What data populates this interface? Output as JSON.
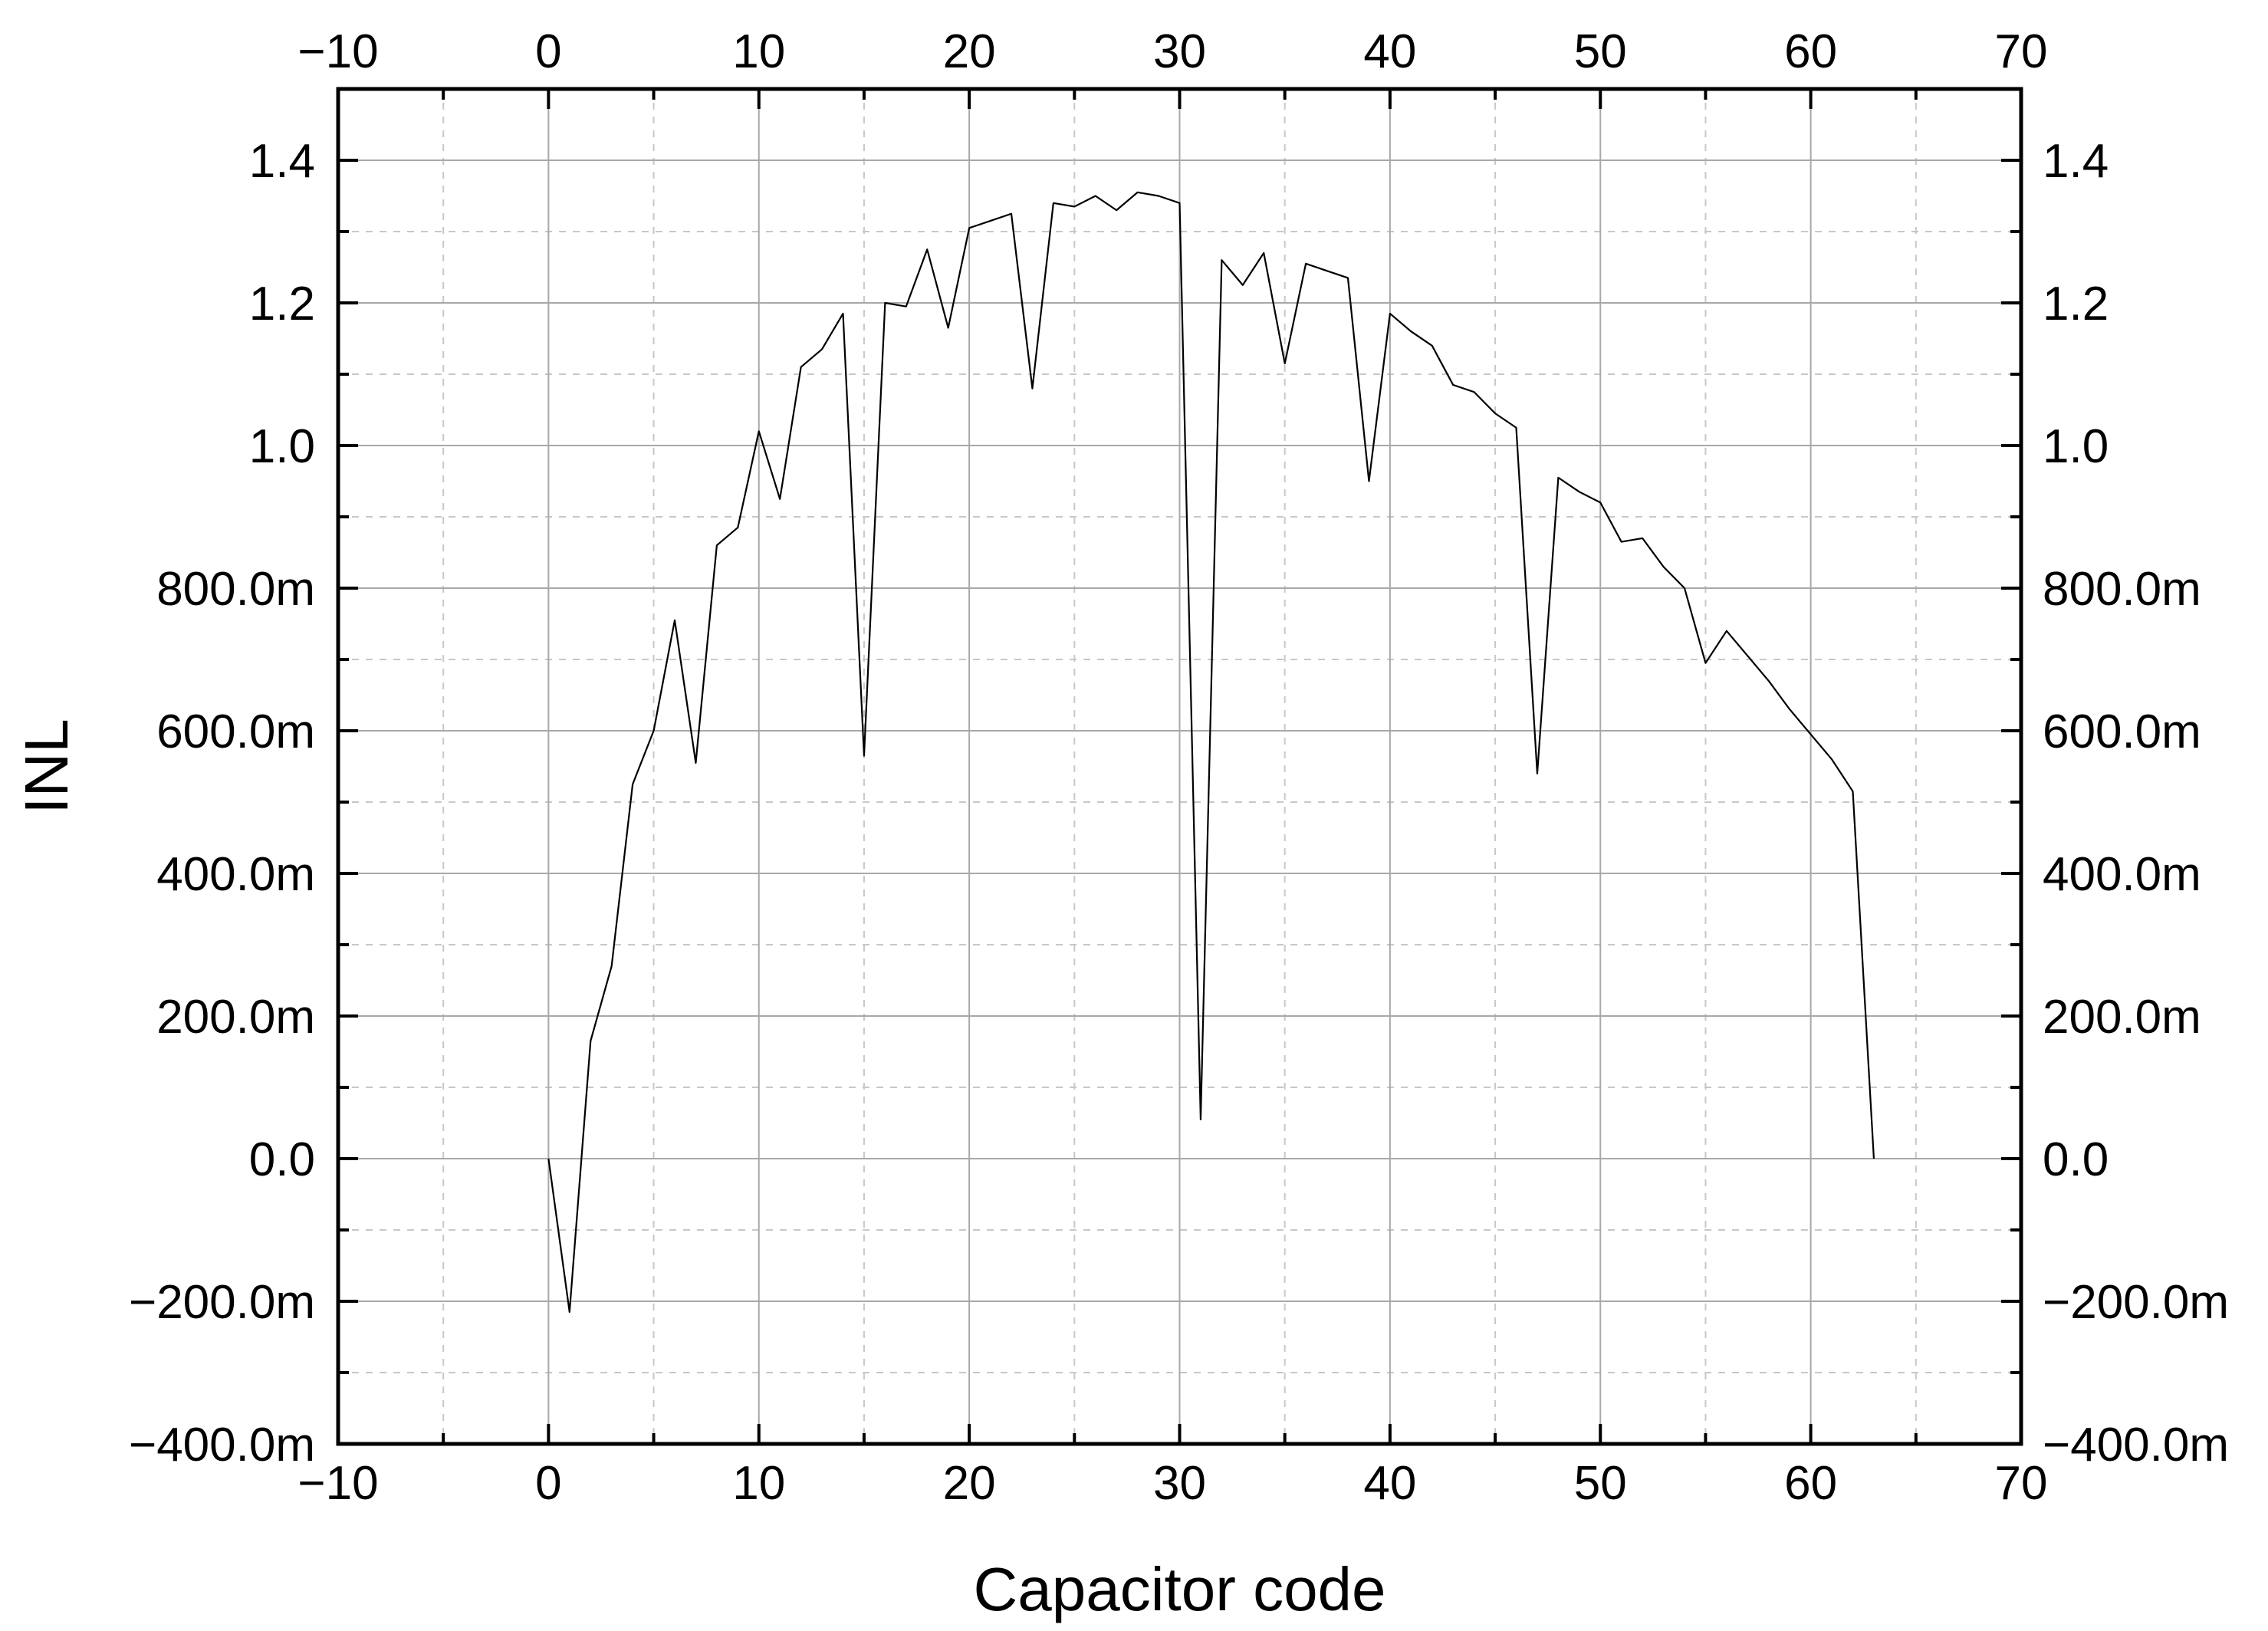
{
  "chart_data": {
    "type": "line",
    "title": "",
    "xlabel": "Capacitor code",
    "ylabel": "INL",
    "xlim": [
      -10,
      70
    ],
    "ylim": [
      -0.4,
      1.5
    ],
    "x_ticks": [
      -10,
      0,
      10,
      20,
      30,
      40,
      50,
      60,
      70
    ],
    "x_tick_labels": [
      "−10",
      "0",
      "10",
      "20",
      "30",
      "40",
      "50",
      "60",
      "70"
    ],
    "x_minor_step": 5,
    "y_ticks": [
      -0.4,
      -0.2,
      0.0,
      0.2,
      0.4,
      0.6,
      0.8,
      1.0,
      1.2,
      1.4
    ],
    "y_tick_labels": [
      "−400.0m",
      "−200.0m",
      "0.0",
      "200.0m",
      "400.0m",
      "600.0m",
      "800.0m",
      "1.0",
      "1.2",
      "1.4"
    ],
    "y_minor_step": 0.1,
    "grid": true,
    "mirrored_axes": true,
    "line_color": "#000000",
    "series": [
      {
        "x": [
          0,
          1,
          2,
          3,
          4,
          5,
          6,
          7,
          8,
          9,
          10,
          11,
          12,
          13,
          14,
          15,
          16,
          17,
          18,
          19,
          20,
          21,
          22,
          23,
          24,
          25,
          26,
          27,
          28,
          29,
          30,
          31,
          32,
          33,
          34,
          35,
          36,
          37,
          38,
          39,
          40,
          41,
          42,
          43,
          44,
          45,
          46,
          47,
          48,
          49,
          50,
          51,
          52,
          53,
          54,
          55,
          56,
          57,
          58,
          59,
          60,
          61,
          62,
          63
        ],
        "values": [
          0.0,
          -0.215,
          0.165,
          0.27,
          0.525,
          0.6,
          0.755,
          0.555,
          0.86,
          0.885,
          1.02,
          0.925,
          1.11,
          1.135,
          1.185,
          0.565,
          1.2,
          1.195,
          1.275,
          1.165,
          1.305,
          1.315,
          1.325,
          1.08,
          1.34,
          1.335,
          1.35,
          1.33,
          1.355,
          1.35,
          1.34,
          0.055,
          1.26,
          1.225,
          1.27,
          1.115,
          1.255,
          1.245,
          1.235,
          0.95,
          1.185,
          1.16,
          1.14,
          1.085,
          1.075,
          1.045,
          1.025,
          0.54,
          0.955,
          0.935,
          0.92,
          0.865,
          0.87,
          0.83,
          0.8,
          0.695,
          0.74,
          0.705,
          0.67,
          0.63,
          0.595,
          0.56,
          0.515,
          0.0
        ]
      }
    ]
  }
}
